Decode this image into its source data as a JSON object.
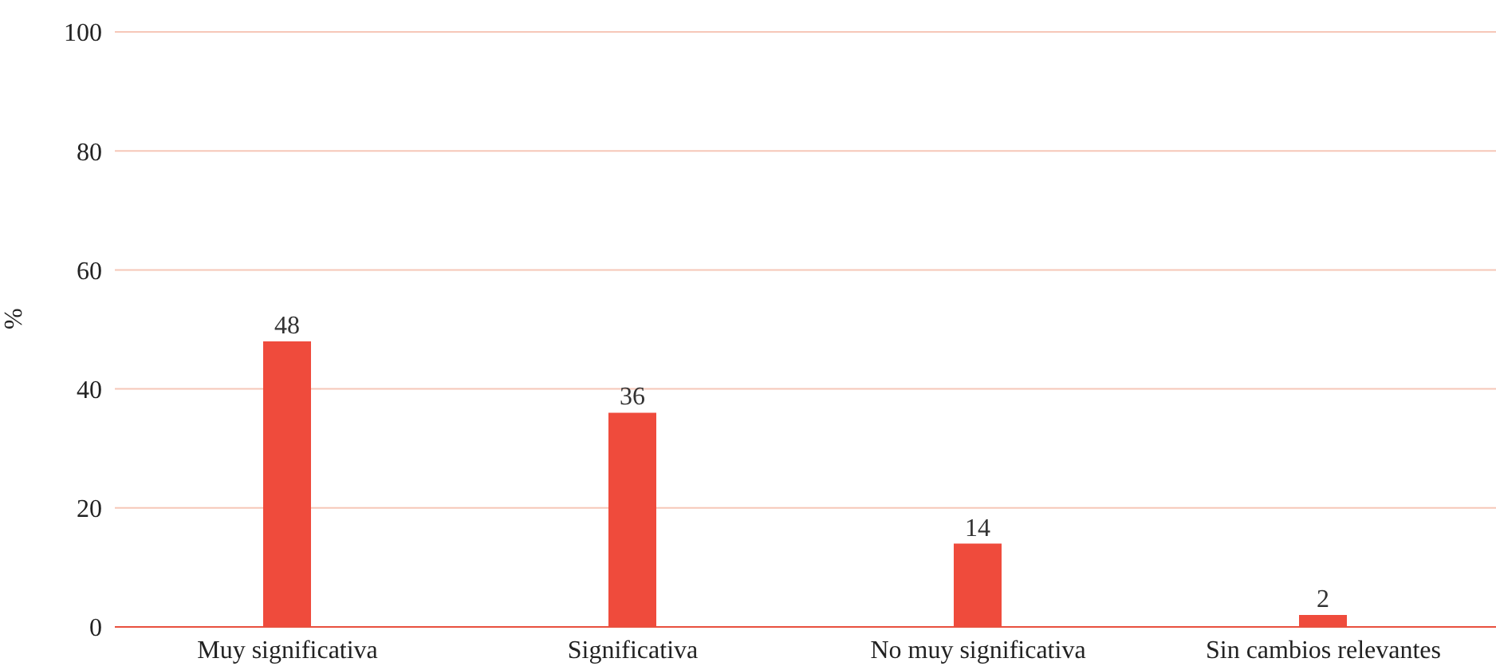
{
  "chart_data": {
    "type": "bar",
    "ylabel": "%",
    "categories": [
      "Muy significativa",
      "Significativa",
      "No muy significativa",
      "Sin cambios relevantes"
    ],
    "values": [
      48,
      36,
      14,
      2
    ],
    "color": "#ef4b3c",
    "ylim": [
      0,
      100
    ],
    "yticks": [
      0,
      20,
      40,
      60,
      80,
      100
    ],
    "grid": "y",
    "data_labels": true
  }
}
